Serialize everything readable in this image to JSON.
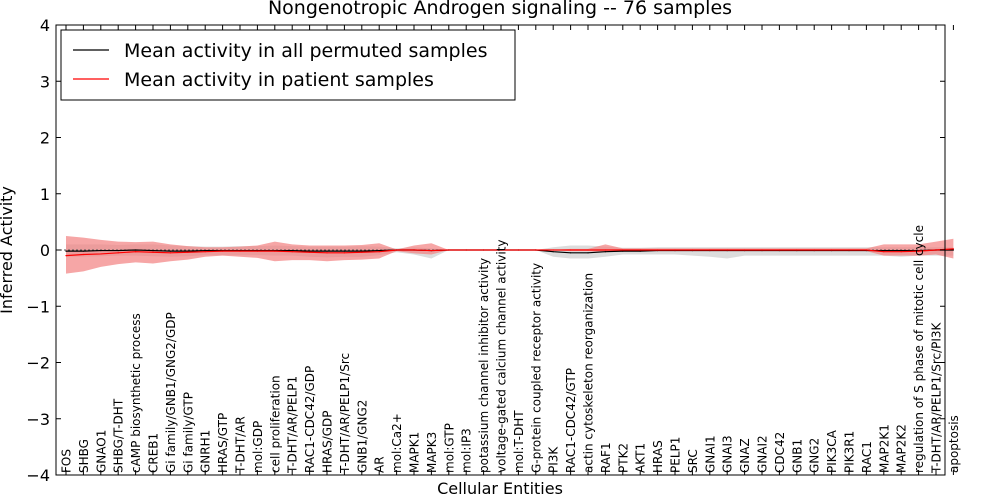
{
  "chart_data": {
    "type": "line",
    "title": "Nongenotropic Androgen signaling -- 76 samples",
    "xlabel": "Cellular Entities",
    "ylabel": "Inferred Activity",
    "ylim": [
      -4,
      4
    ],
    "yticks": [
      -4,
      -3,
      -2,
      -1,
      0,
      1,
      2,
      3,
      4
    ],
    "ytick_labels": [
      "−4",
      "−3",
      "−2",
      "−1",
      "0",
      "1",
      "2",
      "3",
      "4"
    ],
    "legend_position": "top-left",
    "categories": [
      "FOS",
      "SHBG",
      "GNAO1",
      "SHBG/T-DHT",
      "cAMP biosynthetic process",
      "CREB1",
      "Gi family/GNB1/GNG2/GDP",
      "Gi family/GTP",
      "GNRH1",
      "HRAS/GTP",
      "T-DHT/AR",
      "mol:GDP",
      "cell proliferation",
      "T-DHT/AR/PELP1",
      "RAC1-CDC42/GDP",
      "HRAS/GDP",
      "T-DHT/AR/PELP1/Src",
      "GNB1/GNG2",
      "AR",
      "mol:Ca2+",
      "MAPK1",
      "MAPK3",
      "mol:GTP",
      "mol:IP3",
      "potassium channel inhibitor activity",
      "voltage-gated calcium channel activity",
      "mol:T-DHT",
      "G-protein coupled receptor activity",
      "PI3K",
      "RAC1-CDC42/GTP",
      "actin cytoskeleton reorganization",
      "RAF1",
      "PTK2",
      "AKT1",
      "HRAS",
      "PELP1",
      "SRC",
      "GNAI1",
      "GNAI3",
      "GNAZ",
      "GNAI2",
      "CDC42",
      "GNB1",
      "GNG2",
      "PIK3CA",
      "PIK3R1",
      "RAC1",
      "MAP2K1",
      "MAP2K2",
      "regulation of S phase of mitotic cell cycle",
      "T-DHT/AR/PELP1/Src/PI3K",
      "apoptosis"
    ],
    "series": [
      {
        "name": "Mean activity in all permuted samples",
        "color": "#000000",
        "band_color": "#bfbfbf",
        "values": [
          -0.02,
          -0.02,
          -0.01,
          -0.01,
          0.0,
          -0.01,
          -0.02,
          -0.02,
          -0.01,
          -0.01,
          -0.01,
          -0.01,
          -0.01,
          -0.01,
          -0.02,
          -0.02,
          -0.02,
          -0.02,
          -0.01,
          0.0,
          0.0,
          -0.01,
          0.0,
          0.0,
          0.0,
          0.0,
          0.0,
          0.0,
          -0.03,
          -0.05,
          -0.05,
          -0.03,
          -0.02,
          -0.02,
          -0.01,
          -0.01,
          -0.01,
          -0.01,
          -0.01,
          -0.01,
          -0.01,
          -0.01,
          -0.01,
          -0.01,
          -0.01,
          -0.01,
          -0.01,
          -0.01,
          -0.01,
          -0.01,
          0.0,
          0.0
        ],
        "upper": [
          0.1,
          0.1,
          0.1,
          0.09,
          0.1,
          0.1,
          0.08,
          0.07,
          0.06,
          0.06,
          0.07,
          0.07,
          0.08,
          0.07,
          0.06,
          0.06,
          0.06,
          0.07,
          0.06,
          0.03,
          0.05,
          0.03,
          0.0,
          0.0,
          0.0,
          0.0,
          0.0,
          0.0,
          0.05,
          0.08,
          0.08,
          0.06,
          0.04,
          0.04,
          0.05,
          0.05,
          0.05,
          0.05,
          0.05,
          0.05,
          0.05,
          0.05,
          0.05,
          0.05,
          0.05,
          0.05,
          0.05,
          0.05,
          0.05,
          0.05,
          0.05,
          0.05
        ],
        "lower": [
          -0.12,
          -0.12,
          -0.11,
          -0.1,
          -0.1,
          -0.11,
          -0.12,
          -0.11,
          -0.09,
          -0.09,
          -0.09,
          -0.09,
          -0.1,
          -0.1,
          -0.12,
          -0.13,
          -0.12,
          -0.12,
          -0.09,
          -0.04,
          -0.08,
          -0.15,
          0.0,
          0.0,
          0.0,
          0.0,
          0.0,
          0.0,
          -0.12,
          -0.15,
          -0.15,
          -0.12,
          -0.08,
          -0.08,
          -0.08,
          -0.08,
          -0.1,
          -0.12,
          -0.15,
          -0.1,
          -0.1,
          -0.1,
          -0.1,
          -0.1,
          -0.1,
          -0.1,
          -0.1,
          -0.1,
          -0.12,
          -0.1,
          -0.1,
          -0.1
        ]
      },
      {
        "name": "Mean activity in patient samples",
        "color": "#ff0000",
        "band_color": "#f28080",
        "values": [
          -0.1,
          -0.08,
          -0.07,
          -0.05,
          -0.03,
          -0.04,
          -0.05,
          -0.04,
          -0.03,
          -0.02,
          -0.02,
          -0.02,
          -0.02,
          -0.03,
          -0.04,
          -0.05,
          -0.05,
          -0.04,
          -0.03,
          0.0,
          0.0,
          -0.01,
          0.0,
          0.0,
          0.0,
          0.0,
          0.0,
          0.0,
          0.0,
          0.0,
          0.0,
          0.0,
          0.0,
          0.0,
          0.0,
          0.0,
          0.0,
          0.0,
          0.0,
          0.0,
          0.0,
          0.0,
          0.0,
          0.0,
          0.0,
          0.0,
          0.0,
          -0.03,
          -0.03,
          -0.02,
          0.0,
          0.02
        ],
        "upper": [
          0.25,
          0.22,
          0.18,
          0.15,
          0.14,
          0.15,
          0.1,
          0.07,
          0.05,
          0.05,
          0.06,
          0.08,
          0.15,
          0.1,
          0.08,
          0.08,
          0.08,
          0.09,
          0.12,
          0.01,
          0.08,
          0.12,
          0.0,
          0.0,
          0.0,
          0.0,
          0.0,
          0.0,
          0.0,
          0.02,
          0.02,
          0.1,
          0.03,
          0.03,
          0.03,
          0.03,
          0.03,
          0.03,
          0.03,
          0.03,
          0.03,
          0.03,
          0.03,
          0.03,
          0.03,
          0.03,
          0.03,
          0.1,
          0.1,
          0.1,
          0.15,
          0.2
        ],
        "lower": [
          -0.42,
          -0.38,
          -0.3,
          -0.25,
          -0.22,
          -0.24,
          -0.2,
          -0.17,
          -0.12,
          -0.1,
          -0.12,
          -0.14,
          -0.2,
          -0.18,
          -0.18,
          -0.2,
          -0.18,
          -0.17,
          -0.15,
          -0.02,
          -0.06,
          -0.08,
          0.0,
          0.0,
          0.0,
          0.0,
          0.0,
          0.0,
          0.0,
          -0.02,
          -0.02,
          -0.04,
          -0.02,
          -0.02,
          -0.02,
          -0.02,
          -0.02,
          -0.02,
          -0.02,
          -0.02,
          -0.02,
          -0.02,
          -0.02,
          -0.02,
          -0.02,
          -0.02,
          -0.02,
          -0.1,
          -0.1,
          -0.1,
          -0.08,
          -0.15
        ]
      }
    ]
  }
}
